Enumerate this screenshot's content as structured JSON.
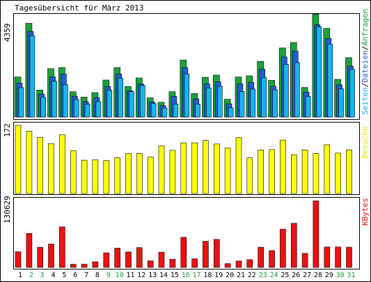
{
  "title": "Tagesübersicht für März 2013",
  "colors": {
    "background": "#ffffff",
    "panel_bg": "#e8e8e8",
    "border": "#000000",
    "anfragen": "#1aa33a",
    "dateien": "#1f5fd1",
    "seiten": "#19b4f0",
    "besuche": "#ffff00",
    "kbytes": "#f01010",
    "weekday_label": "#000000",
    "weekend_label": "#1aa33a"
  },
  "chart_data": [
    {
      "type": "bar",
      "name": "hits",
      "categories": [
        "1",
        "2",
        "3",
        "4",
        "5",
        "6",
        "7",
        "8",
        "9",
        "10",
        "11",
        "12",
        "13",
        "14",
        "15",
        "16",
        "17",
        "18",
        "19",
        "20",
        "21",
        "22",
        "23",
        "24",
        "25",
        "26",
        "27",
        "28",
        "29",
        "30",
        "31"
      ],
      "ymax_label": "4359",
      "ymax": 4359,
      "legend": [
        {
          "label": "Seiten",
          "color": "#19b4f0"
        },
        {
          "label": "/",
          "color": "#000000"
        },
        {
          "label": "Dateien",
          "color": "#1f5fd1"
        },
        {
          "label": "/",
          "color": "#000000"
        },
        {
          "label": "Anfragen",
          "color": "#1aa33a"
        }
      ],
      "series": [
        {
          "name": "Anfragen",
          "values": [
            1690,
            3960,
            1140,
            2040,
            2090,
            1070,
            840,
            1030,
            1560,
            2090,
            1290,
            1650,
            810,
            620,
            1070,
            2410,
            990,
            1680,
            1770,
            750,
            1690,
            1740,
            2350,
            1550,
            2920,
            3150,
            1250,
            4350,
            3750,
            1590,
            2510
          ]
        },
        {
          "name": "Dateien",
          "values": [
            1430,
            3620,
            970,
            1700,
            1810,
            880,
            650,
            820,
            1290,
            1820,
            1110,
            1400,
            640,
            480,
            870,
            2090,
            770,
            1400,
            1490,
            560,
            1400,
            1460,
            2020,
            1300,
            2540,
            2780,
            1050,
            3900,
            3320,
            1360,
            2150
          ]
        },
        {
          "name": "Seiten",
          "values": [
            1240,
            3440,
            830,
            1510,
            1370,
            740,
            540,
            650,
            1130,
            1640,
            1070,
            1330,
            570,
            380,
            550,
            1820,
            550,
            1230,
            1290,
            390,
            1070,
            1180,
            1670,
            1150,
            2230,
            2300,
            870,
            3810,
            3080,
            1190,
            2020
          ]
        }
      ]
    },
    {
      "type": "bar",
      "name": "visits",
      "categories": [
        "1",
        "2",
        "3",
        "4",
        "5",
        "6",
        "7",
        "8",
        "9",
        "10",
        "11",
        "12",
        "13",
        "14",
        "15",
        "16",
        "17",
        "18",
        "19",
        "20",
        "21",
        "22",
        "23",
        "24",
        "25",
        "26",
        "27",
        "28",
        "29",
        "30",
        "31"
      ],
      "ymax_label": "172",
      "ymax": 172,
      "legend": [
        {
          "label": "Besuche",
          "color": "#ffff00"
        }
      ],
      "series": [
        {
          "name": "Besuche",
          "values": [
            172,
            157,
            141,
            126,
            148,
            108,
            84,
            85,
            83,
            90,
            101,
            101,
            92,
            120,
            109,
            128,
            128,
            134,
            125,
            115,
            141,
            90,
            110,
            111,
            135,
            98,
            110,
            101,
            123,
            102,
            110
          ]
        }
      ]
    },
    {
      "type": "bar",
      "name": "kbytes",
      "categories": [
        "1",
        "2",
        "3",
        "4",
        "5",
        "6",
        "7",
        "8",
        "9",
        "10",
        "11",
        "12",
        "13",
        "14",
        "15",
        "16",
        "17",
        "18",
        "19",
        "20",
        "21",
        "22",
        "23",
        "24",
        "25",
        "26",
        "27",
        "28",
        "29",
        "30",
        "31"
      ],
      "ymax_label": "130629",
      "ymax": 130629,
      "legend": [
        {
          "label": "KBytes",
          "color": "#f01010"
        }
      ],
      "series": [
        {
          "name": "KBytes",
          "values": [
            30500,
            66200,
            39200,
            45600,
            79200,
            6100,
            6100,
            10900,
            28400,
            37500,
            30200,
            38600,
            12800,
            29800,
            15800,
            58600,
            16800,
            51000,
            54700,
            7300,
            12500,
            15100,
            39400,
            32800,
            74700,
            86100,
            27300,
            129900,
            39900,
            39900,
            39500
          ]
        }
      ]
    }
  ],
  "weekend_days": [
    2,
    3,
    9,
    10,
    16,
    17,
    23,
    24,
    30,
    31
  ]
}
